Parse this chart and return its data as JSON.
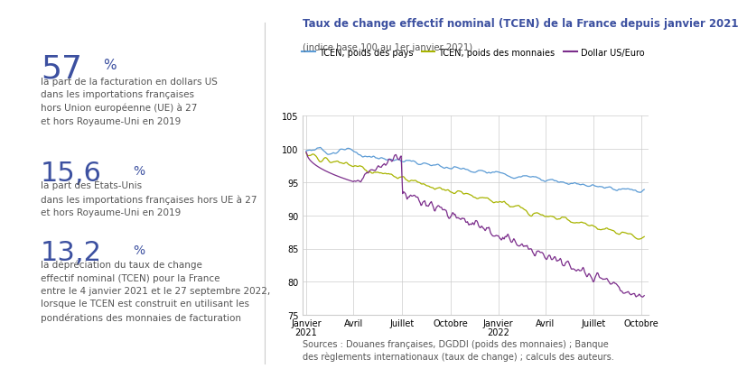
{
  "title": "Taux de change effectif nominal (TCEN) de la France depuis janvier 2021",
  "subtitle": "(indice base 100 au 1er janvier 2021)",
  "legend_labels": [
    "TCEN, poids des pays",
    "TCEN, poids des monnaies",
    "Dollar US/Euro"
  ],
  "legend_colors": [
    "#5B9BD5",
    "#A8B400",
    "#7B2D8B"
  ],
  "ylim": [
    75,
    105
  ],
  "yticks": [
    75,
    80,
    85,
    90,
    95,
    100,
    105
  ],
  "x_labels": [
    "Janvier\n2021",
    "Avril",
    "Juillet",
    "Octobre",
    "Janvier\n2022",
    "Avril",
    "Juillet",
    "Octobre"
  ],
  "x_positions": [
    0,
    64,
    130,
    196,
    261,
    325,
    390,
    455
  ],
  "source_text": "Sources : Douanes françaises, DGDDI (poids des monnaies) ; Banque\ndes règlements internationaux (taux de change) ; calculs des auteurs.",
  "title_color": "#3C50A0",
  "subtitle_color": "#555555",
  "stat1_big": "57",
  "stat1_text": "la part de la facturation en dollars US\ndans les importations françaises\nhors Union européenne (UE) à 27\net hors Royaume-Uni en 2019",
  "stat2_big": "15,6",
  "stat2_text": "la part des États-Unis\ndans les importations françaises hors UE à 27\net hors Royaume-Uni en 2019",
  "stat3_big": "13,2",
  "stat3_text": "la dépréciation du taux de change\neffectif nominal (TCEN) pour la France\nentre le 4 janvier 2021 et le 27 septembre 2022,\nlorsque le TCEN est construit en utilisant les\npondérations des monnaies de facturation",
  "stat_big_color": "#3C50A0",
  "stat_text_color": "#555555",
  "bg_color": "#FFFFFF",
  "grid_color": "#CCCCCC",
  "line_color_pays": "#5B9BD5",
  "line_color_monnaies": "#A8B400",
  "line_color_dollar": "#7B2D8B"
}
